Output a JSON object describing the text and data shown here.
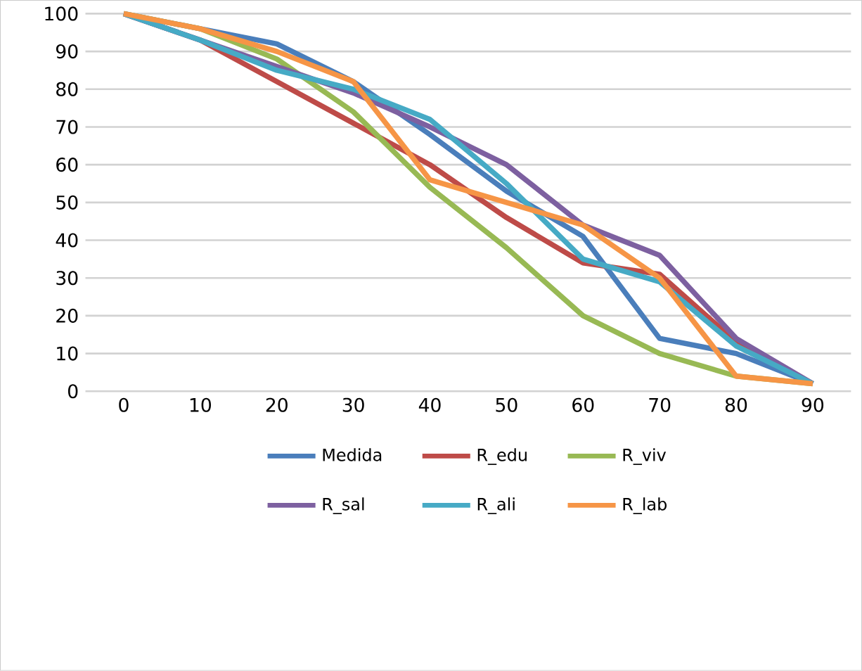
{
  "chart_data": {
    "type": "line",
    "categories": [
      "0",
      "10",
      "20",
      "30",
      "40",
      "50",
      "60",
      "70",
      "80",
      "90"
    ],
    "series": [
      {
        "name": "Medida",
        "color": "#4a7ebb",
        "values": [
          100,
          96,
          92,
          82,
          68,
          53,
          41,
          14,
          10,
          2
        ]
      },
      {
        "name": "R_edu",
        "color": "#be4b48",
        "values": [
          100,
          93,
          82,
          71,
          60,
          46,
          34,
          31,
          13,
          2
        ]
      },
      {
        "name": "R_viv",
        "color": "#98b954",
        "values": [
          100,
          96,
          88,
          74,
          54,
          38,
          20,
          10,
          4,
          2
        ]
      },
      {
        "name": "R_sal",
        "color": "#7d60a0",
        "values": [
          100,
          93,
          86,
          79,
          70,
          60,
          44,
          36,
          14,
          2
        ]
      },
      {
        "name": "R_ali",
        "color": "#46aac5",
        "values": [
          100,
          93,
          85,
          80,
          72,
          55,
          35,
          29,
          12,
          2
        ]
      },
      {
        "name": "R_lab",
        "color": "#f69546",
        "values": [
          100,
          96,
          90,
          82,
          56,
          50,
          44,
          30,
          4,
          2
        ]
      }
    ],
    "ylim": [
      0,
      100
    ],
    "yticks": [
      0,
      10,
      20,
      30,
      40,
      50,
      60,
      70,
      80,
      90,
      100
    ],
    "grid": "y",
    "legend": "bottom",
    "marker": "none",
    "line_style": "solid"
  }
}
